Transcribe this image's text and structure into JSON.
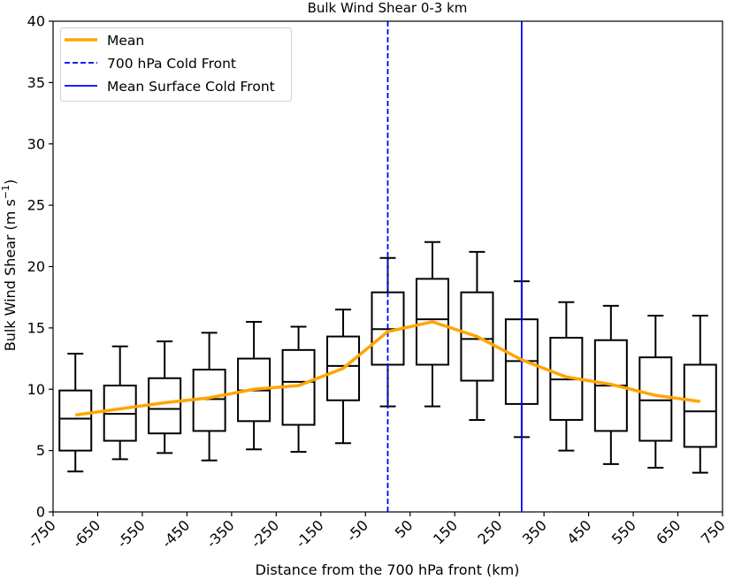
{
  "chart_data": {
    "type": "box",
    "title": "Bulk Wind Shear 0-3 km",
    "xlabel": "Distance from the 700 hPa front (km)",
    "ylabel": "Bulk Wind Shear (m s",
    "ylabel_sup": "−1",
    "ylabel_close": ")",
    "xlim": [
      -750,
      750
    ],
    "ylim": [
      0,
      40
    ],
    "xticks": [
      -750,
      -650,
      -550,
      -450,
      -350,
      -250,
      -150,
      -50,
      50,
      150,
      250,
      350,
      450,
      550,
      650,
      750
    ],
    "yticks": [
      0,
      5,
      10,
      15,
      20,
      25,
      30,
      35,
      40
    ],
    "grid": false,
    "legend": {
      "placement": "top-left",
      "entries": [
        {
          "label": "Mean",
          "color": "#FFA500",
          "style": "solid-thick"
        },
        {
          "label": "700 hPa Cold Front",
          "color": "#0000FF",
          "style": "dashed"
        },
        {
          "label": "Mean Surface Cold Front",
          "color": "#0000FF",
          "style": "solid"
        }
      ]
    },
    "vlines": [
      {
        "name": "700 hPa Cold Front",
        "x": 0,
        "color": "#0000FF",
        "style": "dashed"
      },
      {
        "name": "Mean Surface Cold Front",
        "x": 300,
        "color": "#0000FF",
        "style": "solid"
      }
    ],
    "boxes": [
      {
        "x": -700,
        "whislo": 3.3,
        "q1": 5.0,
        "med": 7.6,
        "q3": 9.9,
        "whishi": 12.9
      },
      {
        "x": -600,
        "whislo": 4.3,
        "q1": 5.8,
        "med": 8.0,
        "q3": 10.3,
        "whishi": 13.5
      },
      {
        "x": -500,
        "whislo": 4.8,
        "q1": 6.4,
        "med": 8.4,
        "q3": 10.9,
        "whishi": 13.9
      },
      {
        "x": -400,
        "whislo": 4.2,
        "q1": 6.6,
        "med": 9.2,
        "q3": 11.6,
        "whishi": 14.6
      },
      {
        "x": -300,
        "whislo": 5.1,
        "q1": 7.4,
        "med": 9.9,
        "q3": 12.5,
        "whishi": 15.5
      },
      {
        "x": -200,
        "whislo": 4.9,
        "q1": 7.1,
        "med": 10.6,
        "q3": 13.2,
        "whishi": 15.1
      },
      {
        "x": -100,
        "whislo": 5.6,
        "q1": 9.1,
        "med": 11.9,
        "q3": 14.3,
        "whishi": 16.5
      },
      {
        "x": 0,
        "whislo": 8.6,
        "q1": 12.0,
        "med": 14.9,
        "q3": 17.9,
        "whishi": 20.7
      },
      {
        "x": 100,
        "whislo": 8.6,
        "q1": 12.0,
        "med": 15.7,
        "q3": 19.0,
        "whishi": 22.0
      },
      {
        "x": 200,
        "whislo": 7.5,
        "q1": 10.7,
        "med": 14.1,
        "q3": 17.9,
        "whishi": 21.2
      },
      {
        "x": 300,
        "whislo": 6.1,
        "q1": 8.8,
        "med": 12.3,
        "q3": 15.7,
        "whishi": 18.8
      },
      {
        "x": 400,
        "whislo": 5.0,
        "q1": 7.5,
        "med": 10.8,
        "q3": 14.2,
        "whishi": 17.1
      },
      {
        "x": 500,
        "whislo": 3.9,
        "q1": 6.6,
        "med": 10.3,
        "q3": 14.0,
        "whishi": 16.8
      },
      {
        "x": 600,
        "whislo": 3.6,
        "q1": 5.8,
        "med": 9.1,
        "q3": 12.6,
        "whishi": 16.0
      },
      {
        "x": 700,
        "whislo": 3.2,
        "q1": 5.3,
        "med": 8.2,
        "q3": 12.0,
        "whishi": 16.0
      }
    ],
    "series": [
      {
        "name": "Mean",
        "color": "#FFA500",
        "x": [
          -700,
          -600,
          -500,
          -400,
          -300,
          -200,
          -100,
          0,
          100,
          200,
          300,
          400,
          500,
          600,
          700
        ],
        "values": [
          7.9,
          8.4,
          8.9,
          9.3,
          10.0,
          10.3,
          11.7,
          14.7,
          15.5,
          14.3,
          12.4,
          11.0,
          10.4,
          9.5,
          9.0
        ]
      }
    ]
  }
}
